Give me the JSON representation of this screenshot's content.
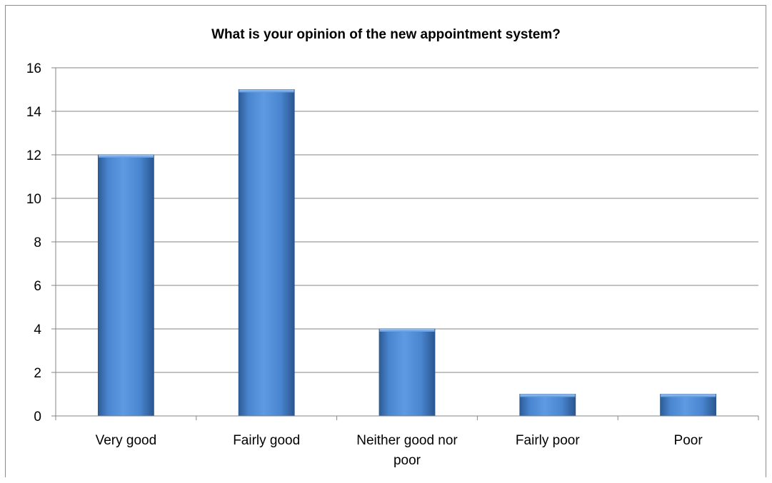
{
  "chart_data": {
    "type": "bar",
    "title": "What is your opinion of the new appointment system?",
    "categories": [
      [
        "Very good"
      ],
      [
        "Fairly good"
      ],
      [
        "Neither good nor",
        "poor"
      ],
      [
        "Fairly poor"
      ],
      [
        "Poor"
      ]
    ],
    "values": [
      12,
      15,
      4,
      1,
      1
    ],
    "ylim": [
      0,
      16
    ],
    "yticks": [
      0,
      2,
      4,
      6,
      8,
      10,
      12,
      14,
      16
    ],
    "grid": true,
    "legend": "none",
    "colors": {
      "bar_light": "#7fb0ec",
      "bar_mid": "#4f8fdc",
      "bar_dark": "#2c5f9e",
      "grid": "#868686",
      "axis": "#868686"
    }
  }
}
